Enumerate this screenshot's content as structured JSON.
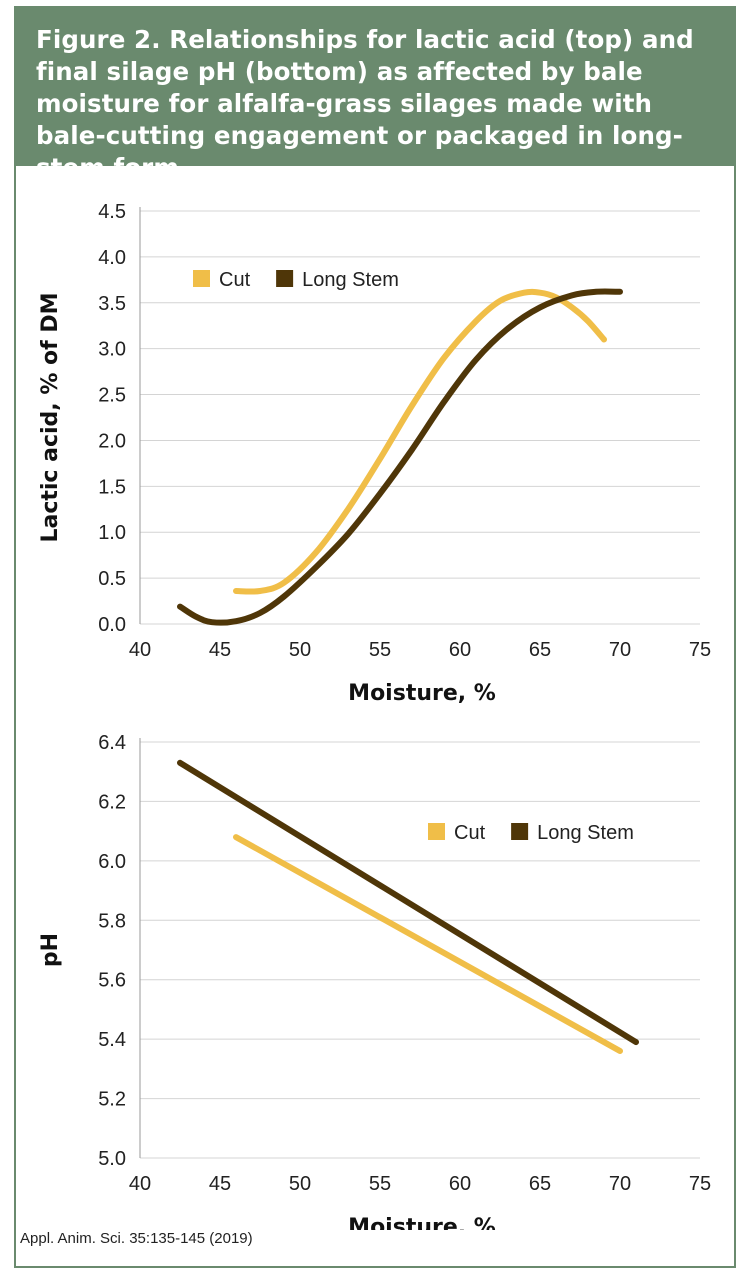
{
  "figure": {
    "title": "Figure 2. Relationships for lactic acid (top) and final silage pH (bottom) as affected by bale moisture for alfalfa-grass silages made with bale-cutting engagement or packaged in long-stem form",
    "source": "Appl. Anim. Sci. 35:135-145 (2019)"
  },
  "colors": {
    "header_bg": "#6a8a6e",
    "cut": "#f0be48",
    "long_stem": "#4f3608",
    "grid": "#d4d4d4"
  },
  "chart_data": [
    {
      "type": "line",
      "title": "",
      "xlabel": "Moisture, %",
      "ylabel": "Lactic acid, % of DM",
      "xlim": [
        40,
        75
      ],
      "ylim": [
        0,
        4.5
      ],
      "xticks": [
        "40",
        "45",
        "50",
        "55",
        "60",
        "65",
        "70",
        "75"
      ],
      "yticks": [
        "0.0",
        "0.5",
        "1.0",
        "1.5",
        "2.0",
        "2.5",
        "3.0",
        "3.5",
        "4.0",
        "4.5"
      ],
      "grid": true,
      "legend": "top-left",
      "series": [
        {
          "name": "Cut",
          "color": "#f0be48",
          "x": [
            46,
            47.5,
            49,
            51,
            53,
            55,
            57,
            59,
            61,
            62.5,
            64,
            65,
            66,
            67,
            68,
            69
          ],
          "y": [
            0.36,
            0.36,
            0.45,
            0.78,
            1.25,
            1.8,
            2.38,
            2.9,
            3.3,
            3.52,
            3.61,
            3.61,
            3.56,
            3.45,
            3.3,
            3.1
          ]
        },
        {
          "name": "Long Stem",
          "color": "#4f3608",
          "x": [
            42.5,
            43.5,
            44.5,
            46,
            47.5,
            49,
            51,
            53,
            55,
            57,
            59,
            61,
            63,
            65,
            67,
            68.5,
            70
          ],
          "y": [
            0.19,
            0.08,
            0.02,
            0.03,
            0.12,
            0.3,
            0.62,
            0.98,
            1.42,
            1.9,
            2.42,
            2.88,
            3.22,
            3.45,
            3.58,
            3.62,
            3.62
          ]
        }
      ]
    },
    {
      "type": "line",
      "title": "",
      "xlabel": "Moisture, %",
      "ylabel": "pH",
      "xlim": [
        40,
        75
      ],
      "ylim": [
        5.0,
        6.4
      ],
      "xticks": [
        "40",
        "45",
        "50",
        "55",
        "60",
        "65",
        "70",
        "75"
      ],
      "yticks": [
        "5.0",
        "5.2",
        "5.4",
        "5.6",
        "5.8",
        "6.0",
        "6.2",
        "6.4"
      ],
      "grid": true,
      "legend": "top-right",
      "series": [
        {
          "name": "Cut",
          "color": "#f0be48",
          "x": [
            46,
            70
          ],
          "y": [
            6.08,
            5.36
          ]
        },
        {
          "name": "Long Stem",
          "color": "#4f3608",
          "x": [
            42.5,
            71
          ],
          "y": [
            6.33,
            5.39
          ]
        }
      ]
    }
  ]
}
